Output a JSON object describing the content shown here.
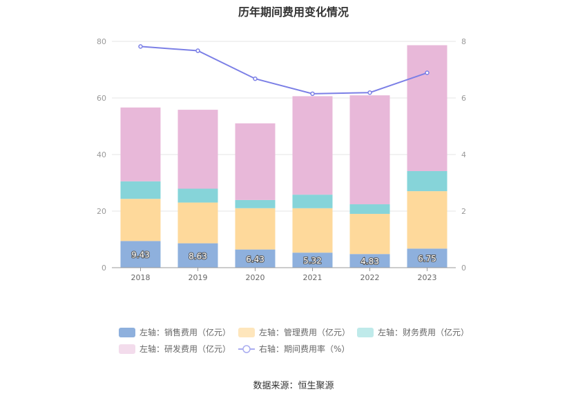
{
  "title": "历年期间费用变化情况",
  "source": "数据来源：恒生聚源",
  "chart_data": {
    "type": "bar",
    "stacked": true,
    "categories": [
      "2018",
      "2019",
      "2020",
      "2021",
      "2022",
      "2023"
    ],
    "left_axis": {
      "min": 0,
      "max": 80,
      "ticks": [
        0,
        20,
        40,
        60,
        80
      ]
    },
    "right_axis": {
      "min": 0,
      "max": 8,
      "ticks": [
        0,
        2,
        4,
        6,
        8
      ]
    },
    "series": [
      {
        "name": "左轴：销售费用（亿元）",
        "axis": "left",
        "type": "bar",
        "color": "#8eb0dd",
        "legend_color": "#8eb0dd",
        "values": [
          9.43,
          8.63,
          6.43,
          5.32,
          4.83,
          6.75
        ],
        "value_labels": [
          "9.43",
          "8.63",
          "6.43",
          "5.32",
          "4.83",
          "6.75"
        ]
      },
      {
        "name": "左轴：管理费用（亿元）",
        "axis": "left",
        "type": "bar",
        "color": "#fed99b",
        "legend_color": "#fee6bc",
        "values": [
          14.9,
          14.4,
          14.6,
          15.7,
          14.2,
          20.3
        ]
      },
      {
        "name": "左轴：财务费用（亿元）",
        "axis": "left",
        "type": "bar",
        "color": "#86d4d9",
        "legend_color": "#bfeaea",
        "values": [
          6.2,
          4.9,
          2.9,
          4.8,
          3.4,
          7.1
        ]
      },
      {
        "name": "左轴：研发费用（亿元）",
        "axis": "left",
        "type": "bar",
        "color": "#e8b8d9",
        "legend_color": "#f3dcec",
        "values": [
          26.1,
          27.9,
          27.1,
          34.8,
          38.5,
          44.5
        ]
      },
      {
        "name": "右轴：期间费用率（%）",
        "axis": "right",
        "type": "line",
        "color": "#7b7fe6",
        "legend_color": "#a9acf0",
        "values": [
          7.82,
          7.67,
          6.68,
          6.15,
          6.19,
          6.89
        ]
      }
    ],
    "grid": true,
    "legend_position": "bottom"
  }
}
